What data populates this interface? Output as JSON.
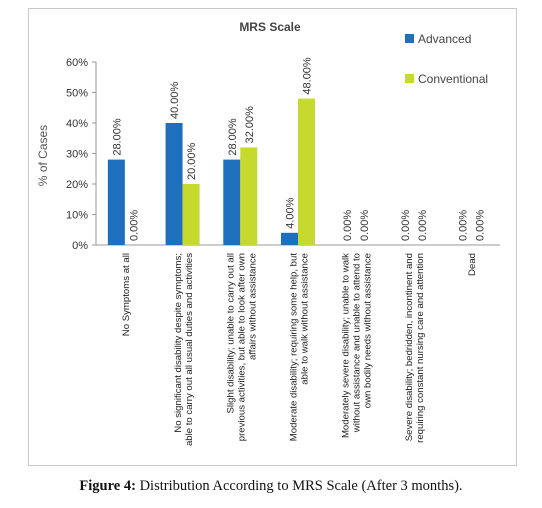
{
  "chart_data": {
    "type": "bar",
    "title": "MRS Scale",
    "ylabel": "% of Cases",
    "xlabel": "",
    "ylim": [
      0,
      60
    ],
    "yticks": [
      "0%",
      "10%",
      "20%",
      "30%",
      "40%",
      "50%",
      "60%"
    ],
    "categories": [
      "No Symptoms at all",
      "No significant disability despite symptoms; able to carry out all usual duties and activities",
      "Slight disability; unable to carry out all previous activities, but able to look after own affairs without assistance",
      "Moderate disability; requiring some help, but able to walk without assistance",
      "Moderately severe disability; unable to walk without assistance and unable to attend to own bodily needs without assistance",
      "Severe disability; bedridden, incontinent and requiring constant nursing care and attention",
      "Dead"
    ],
    "category_lines": [
      [
        "No Symptoms at all"
      ],
      [
        "No significant disability despite symptoms;",
        "able to carry out all usual duties and activities"
      ],
      [
        "Slight disability; unable to carry out all",
        "previous activities, but able to look after own",
        "affairs without assistance"
      ],
      [
        "Moderate disability; requiring some help, but",
        "able to walk without assistance"
      ],
      [
        "Moderately severe disability; unable to walk",
        "without assistance and unable to attend to",
        "own bodily needs without assistance"
      ],
      [
        "Severe disability; bedridden, incontinent and",
        "requiring constant nursing care and attention"
      ],
      [
        "Dead"
      ]
    ],
    "series": [
      {
        "name": "Advanced",
        "color": "#1f6fbf",
        "values": [
          28,
          40,
          28,
          4,
          0,
          0,
          0
        ],
        "labels": [
          "28.00%",
          "40.00%",
          "28.00%",
          "4.00%",
          "0.00%",
          "0.00%",
          "0.00%"
        ]
      },
      {
        "name": "Conventional",
        "color": "#c6d92e",
        "values": [
          0,
          20,
          32,
          48,
          0,
          0,
          0
        ],
        "labels": [
          "0.00%",
          "20.00%",
          "32.00%",
          "48.00%",
          "0.00%",
          "0.00%",
          "0.00%"
        ]
      }
    ],
    "grid": false,
    "legend_position": "right"
  },
  "caption": {
    "figure_label": "Figure 4:",
    "text": " Distribution According to MRS Scale (After 3 months)."
  }
}
